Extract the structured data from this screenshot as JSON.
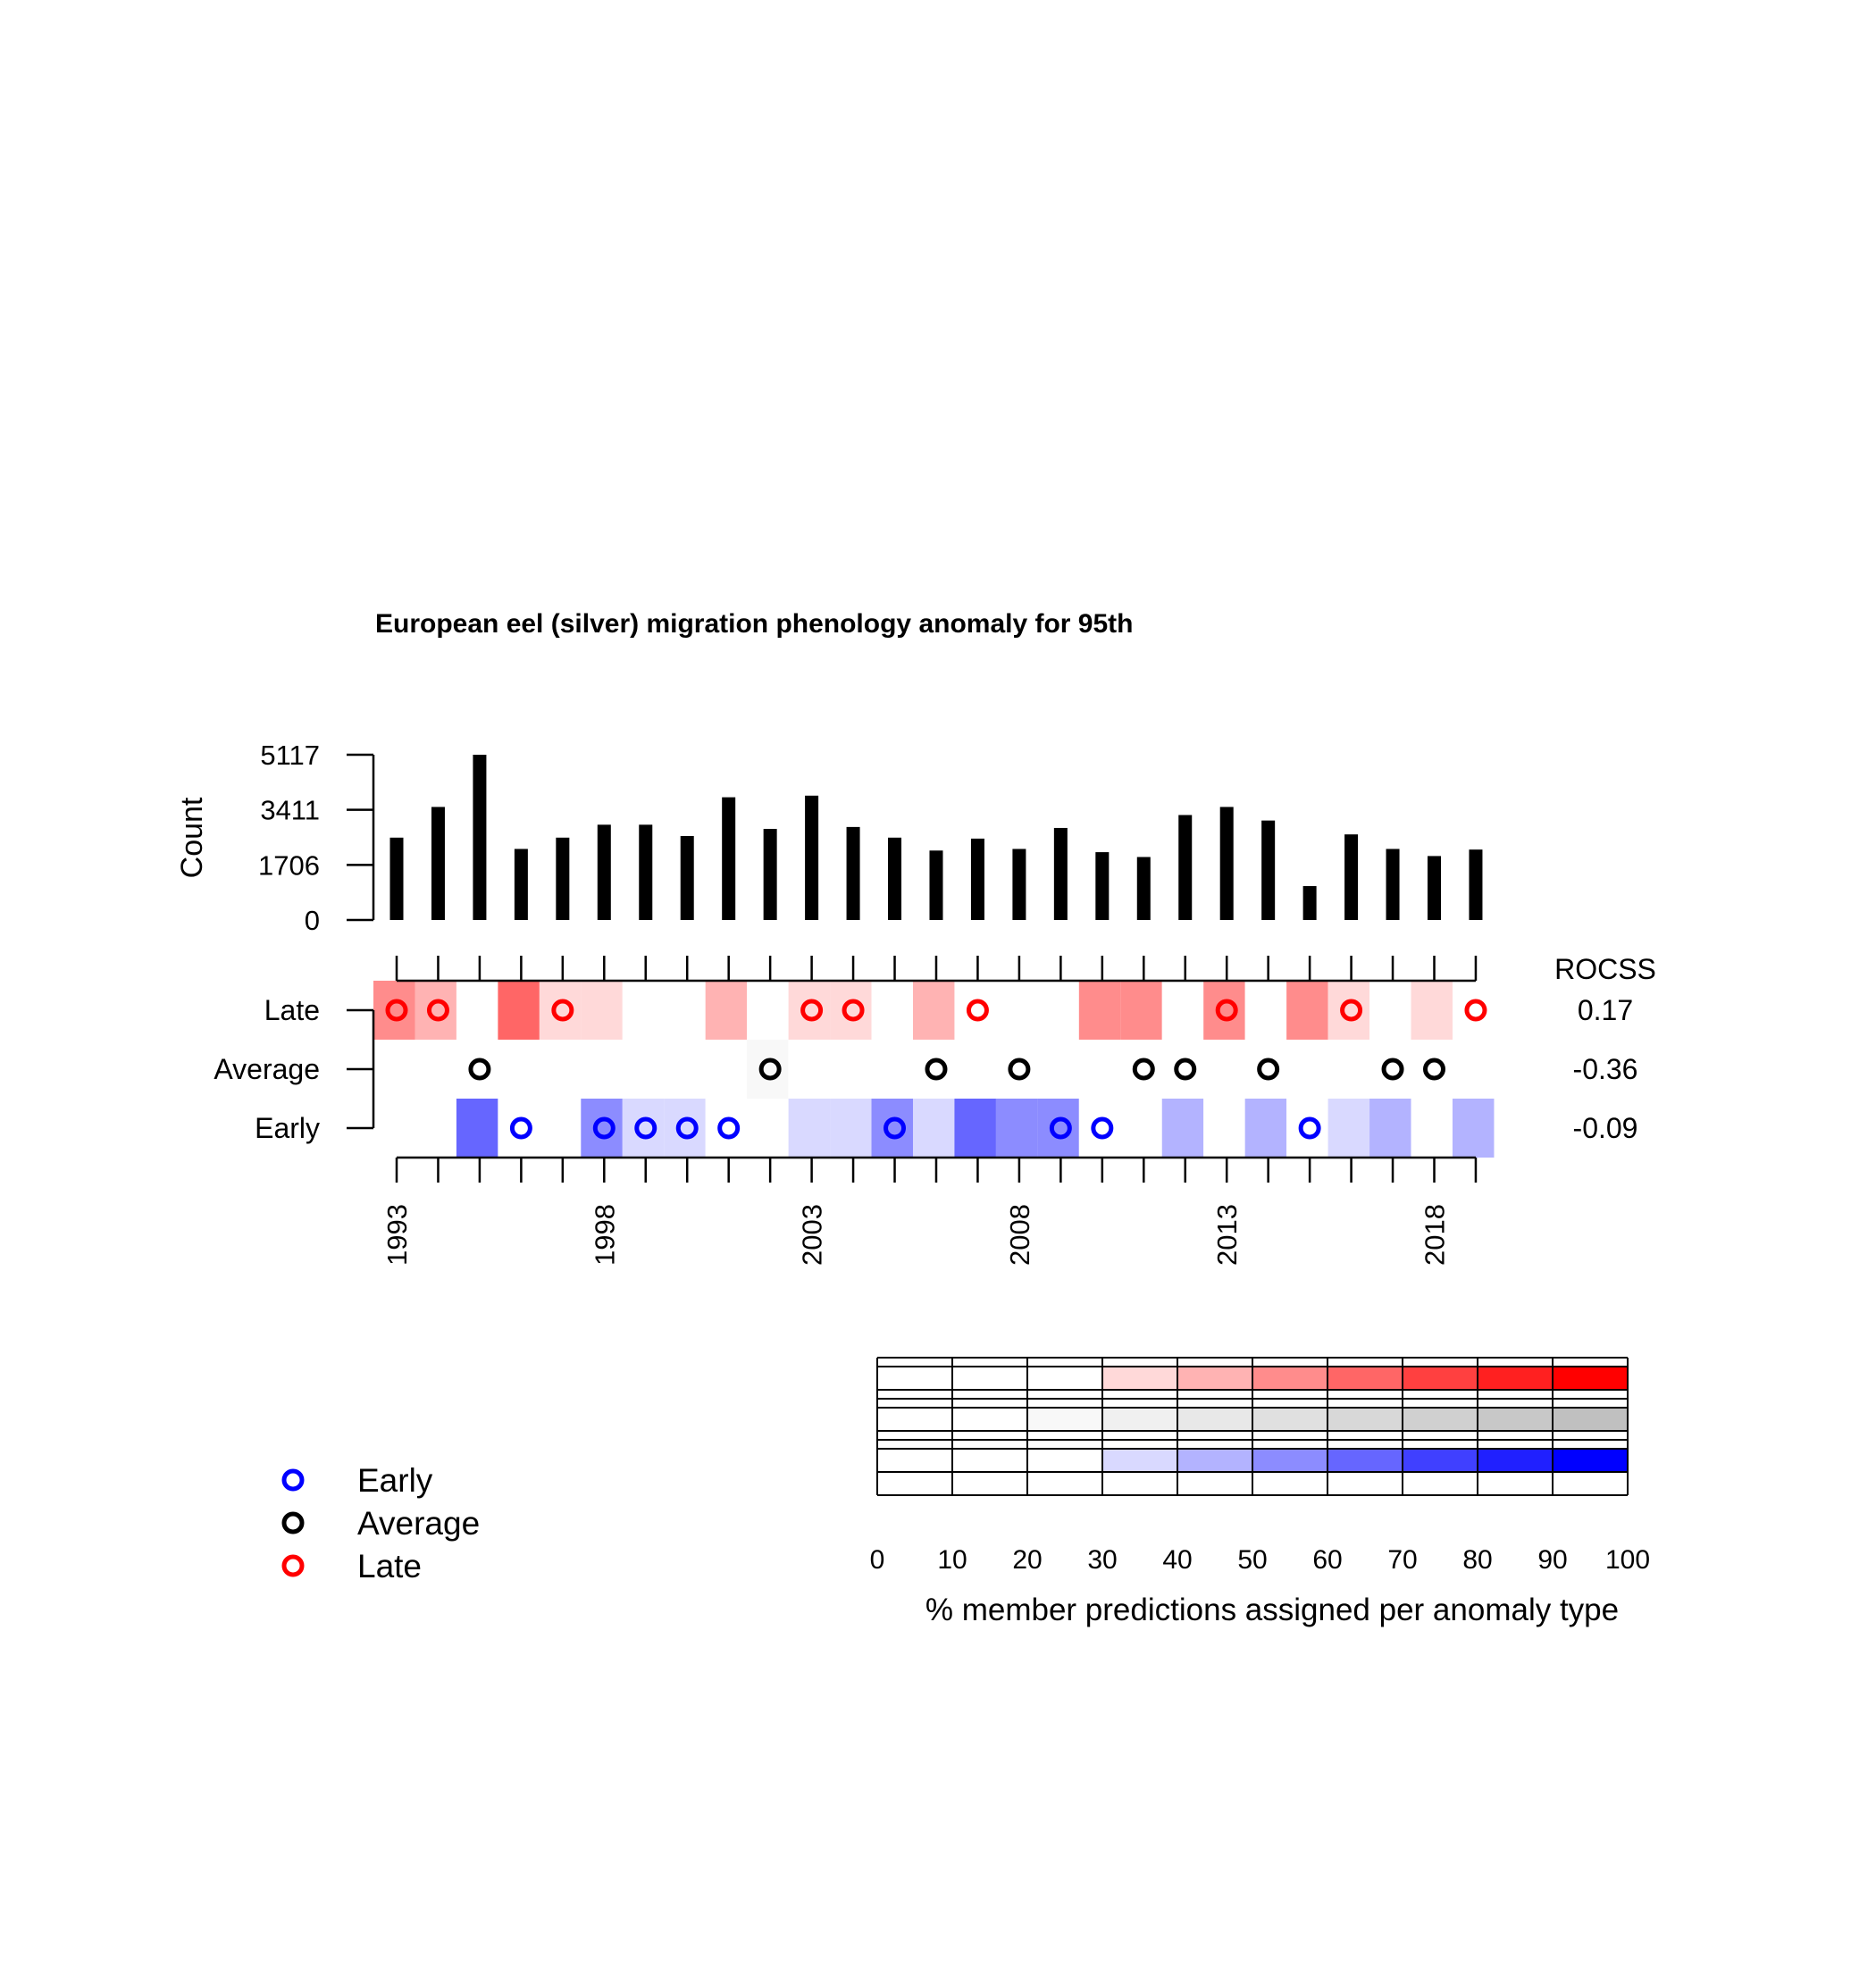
{
  "chart_data": {
    "type": "heatmap",
    "title": "European eel (silver) migration phenology anomaly for 95th",
    "bar_panel": {
      "ylabel": "Count",
      "y_ticks": [
        0,
        1706,
        3411,
        5117
      ],
      "ylim": [
        0,
        5117
      ]
    },
    "years": [
      1993,
      1994,
      1995,
      1996,
      1997,
      1998,
      1999,
      2000,
      2001,
      2002,
      2003,
      2004,
      2005,
      2006,
      2007,
      2008,
      2009,
      2010,
      2011,
      2012,
      2013,
      2014,
      2015,
      2016,
      2017,
      2018,
      2019
    ],
    "x_tick_labels": [
      "1993",
      "1998",
      "2003",
      "2008",
      "2013",
      "2018"
    ],
    "counts": [
      2550,
      3500,
      5117,
      2200,
      2550,
      2950,
      2950,
      2600,
      3800,
      2820,
      3850,
      2880,
      2550,
      2150,
      2520,
      2200,
      2850,
      2100,
      1950,
      3250,
      3500,
      3080,
      1050,
      2650,
      2200,
      1980,
      2180
    ],
    "categories": [
      "Late",
      "Average",
      "Early"
    ],
    "category_colors": {
      "Late": "#ff0000",
      "Average": "#000000",
      "Early": "#0000ff"
    },
    "rocss_header": "ROCSS",
    "rocss": {
      "Late": "0.17",
      "Average": "-0.36",
      "Early": "-0.09"
    },
    "probabilities": {
      "Late": [
        55,
        40,
        0,
        60,
        30,
        30,
        0,
        0,
        40,
        0,
        30,
        30,
        0,
        40,
        0,
        0,
        0,
        50,
        50,
        0,
        50,
        0,
        50,
        30,
        0,
        30,
        0
      ],
      "Average": [
        10,
        10,
        10,
        0,
        15,
        0,
        15,
        15,
        10,
        25,
        15,
        10,
        10,
        10,
        10,
        10,
        0,
        0,
        0,
        10,
        10,
        10,
        10,
        10,
        0,
        15,
        0
      ],
      "Early": [
        0,
        0,
        60,
        0,
        0,
        50,
        35,
        35,
        0,
        0,
        30,
        30,
        50,
        30,
        60,
        50,
        50,
        0,
        0,
        45,
        0,
        45,
        0,
        35,
        45,
        0,
        45
      ]
    },
    "observed": [
      "Late",
      "Late",
      "Average",
      "Early",
      "Late",
      "Early",
      "Early",
      "Early",
      "Early",
      "Average",
      "Late",
      "Late",
      "Early",
      "Average",
      "Late",
      "Average",
      "Early",
      "Early",
      "Average",
      "Average",
      "Late",
      "Average",
      "Early",
      "Late",
      "Average",
      "Average",
      "Late"
    ],
    "legend": {
      "position": "bottom-left",
      "entries": [
        "Early",
        "Average",
        "Late"
      ]
    },
    "colorbar": {
      "ticks": [
        0,
        10,
        20,
        30,
        40,
        50,
        60,
        70,
        80,
        90,
        100
      ],
      "label": "% member predictions assigned per anomaly type",
      "late_colors": [
        "#ffffff",
        "#ffffff",
        "#ffd9d9",
        "#ffb3b3",
        "#ff8c8c",
        "#ff6666",
        "#ff4040",
        "#ff2020",
        "#ff0000"
      ],
      "average_colors": [
        "#ffffff",
        "#f8f8f8",
        "#f0f0f0",
        "#e8e8e8",
        "#e0e0e0",
        "#d8d8d8",
        "#d0d0d0",
        "#c8c8c8",
        "#c0c0c0"
      ],
      "early_colors": [
        "#ffffff",
        "#ffffff",
        "#d9d9ff",
        "#b3b3ff",
        "#8c8cff",
        "#6666ff",
        "#4040ff",
        "#2020ff",
        "#0000ff"
      ]
    }
  }
}
